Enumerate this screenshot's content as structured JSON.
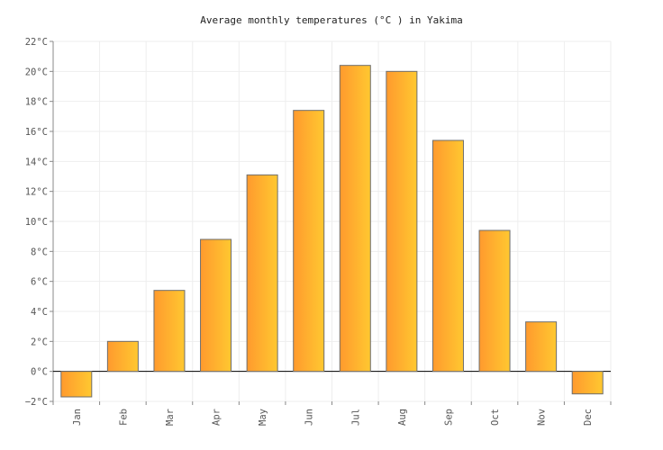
{
  "chart_data": {
    "type": "bar",
    "title": "Average monthly temperatures (°C ) in Yakima",
    "categories": [
      "Jan",
      "Feb",
      "Mar",
      "Apr",
      "May",
      "Jun",
      "Jul",
      "Aug",
      "Sep",
      "Oct",
      "Nov",
      "Dec"
    ],
    "values": [
      -1.7,
      2.0,
      5.4,
      8.8,
      13.1,
      17.4,
      20.4,
      20.0,
      15.4,
      9.4,
      3.3,
      -1.5
    ],
    "ylim": [
      -2,
      22
    ],
    "yticks": [
      "−2°C",
      "0°C",
      "2°C",
      "4°C",
      "6°C",
      "8°C",
      "10°C",
      "12°C",
      "14°C",
      "16°C",
      "18°C",
      "20°C",
      "22°C"
    ],
    "xlabel": "",
    "ylabel": "",
    "grid": true,
    "colors": {
      "bar_start": "#ff9a2e",
      "bar_end": "#ffc830",
      "bar_stroke": "#6e6e6e",
      "grid": "#eeeeee",
      "axis": "#000000"
    }
  }
}
